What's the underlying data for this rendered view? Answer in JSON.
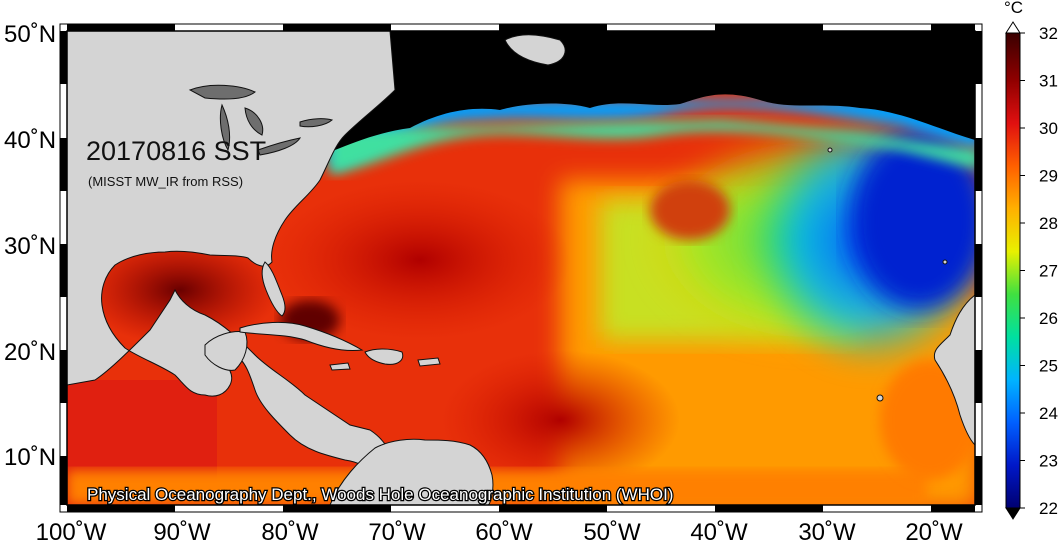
{
  "title": "20170816 SST",
  "subtitle": "(MISST MW_IR from RSS)",
  "credit": "Physical Oceanography Dept., Woods Hole Oceanographic Institution (WHOI)",
  "colorbar": {
    "unit": "°C",
    "min": 22,
    "max": 32,
    "ticks": [
      "22",
      "23",
      "24",
      "25",
      "26",
      "27",
      "28",
      "29",
      "30",
      "31",
      "32"
    ],
    "colors": [
      "#000070",
      "#0018c8",
      "#0060ff",
      "#00b4ff",
      "#00e0a0",
      "#40e040",
      "#e8f000",
      "#ffb000",
      "#ff6000",
      "#e01010",
      "#900000",
      "#3a0000"
    ]
  },
  "axes": {
    "lat_labels": [
      "50˚N",
      "40˚N",
      "30˚N",
      "20˚N",
      "10˚N"
    ],
    "lon_labels": [
      "100˚W",
      "90˚W",
      "80˚W",
      "70˚W",
      "60˚W",
      "50˚W",
      "40˚W",
      "30˚W",
      "20˚W"
    ]
  },
  "colors": {
    "land": "#d4d4d4",
    "missing": "#000000",
    "lakes": "#6e6e6e"
  }
}
